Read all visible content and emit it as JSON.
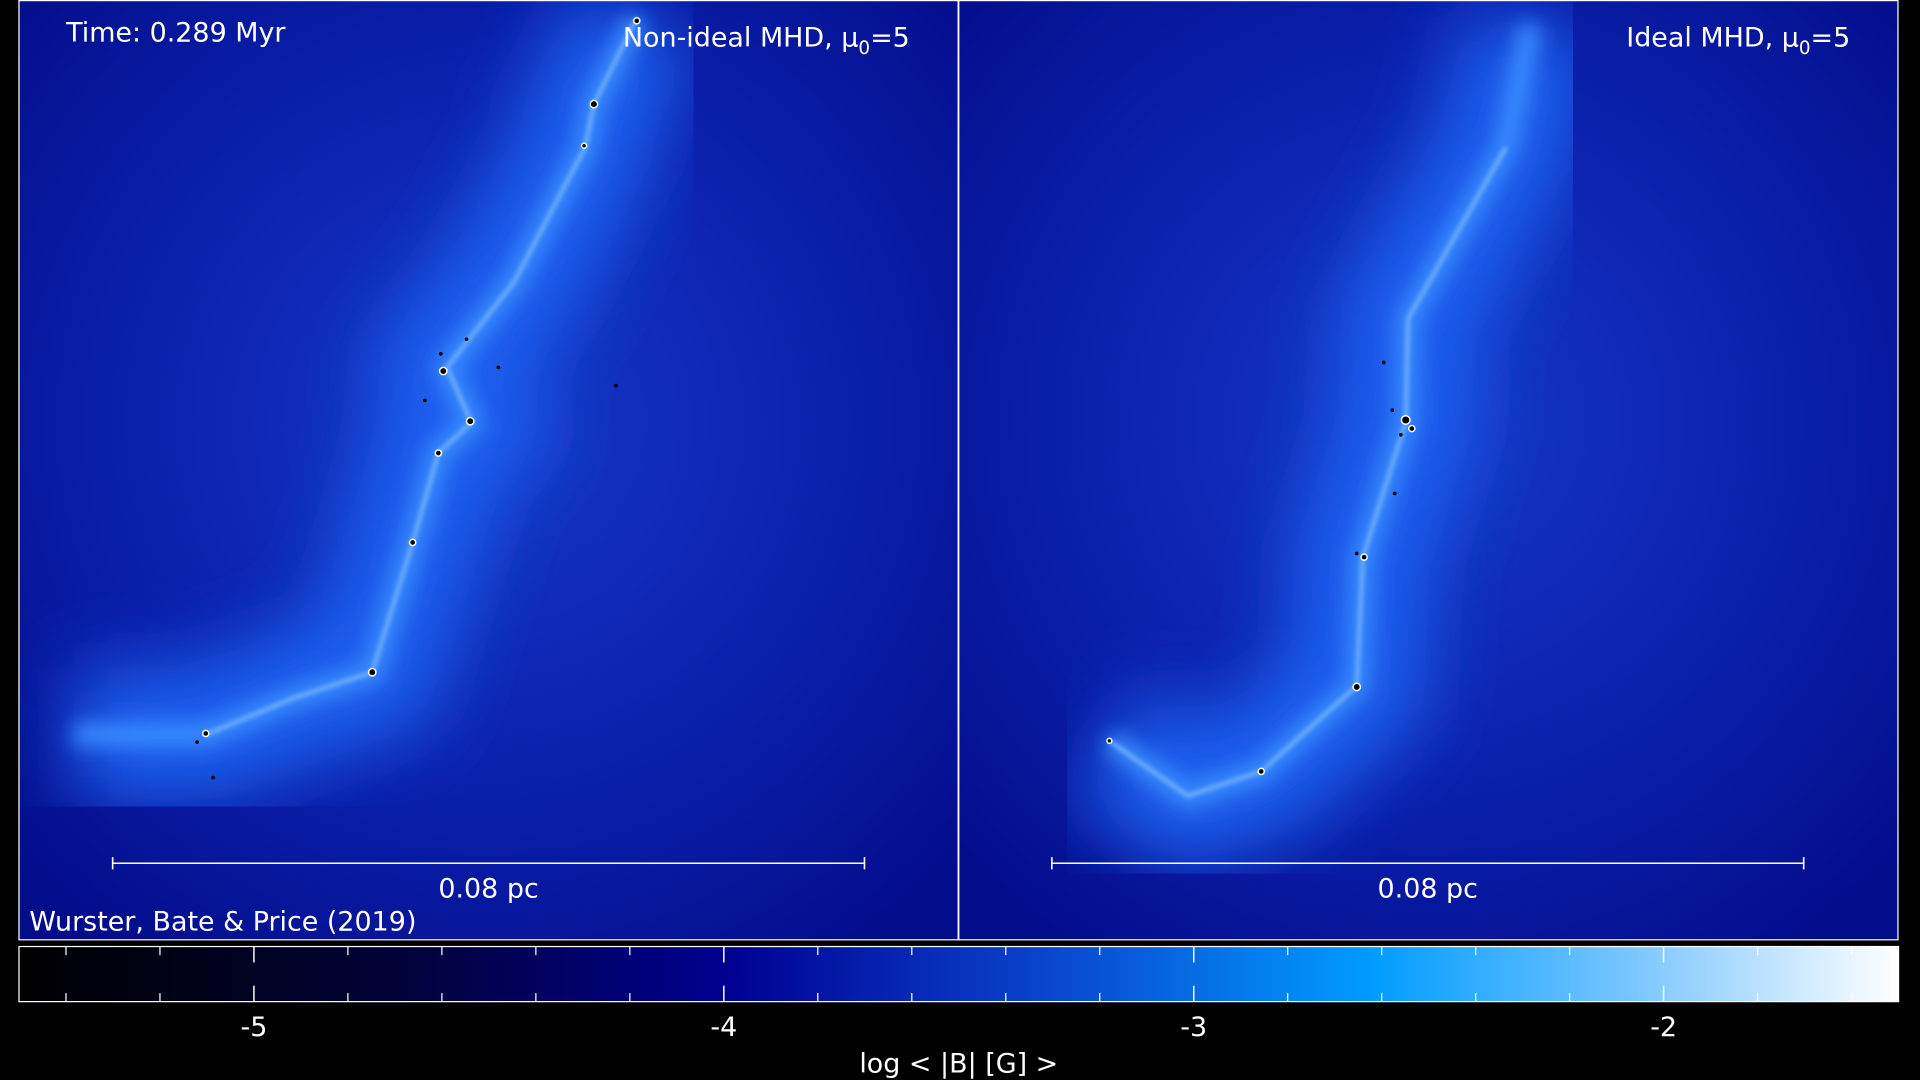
{
  "header": {
    "time": "Time: 0.289 Myr",
    "credit": "Wurster, Bate & Price (2019)"
  },
  "panels": [
    {
      "title": {
        "prefix": "Non-ideal MHD, μ",
        "subscript": "0",
        "suffix": "=5"
      },
      "scale_bar": "0.08 pc"
    },
    {
      "title": {
        "prefix": "Ideal MHD, μ",
        "subscript": "0",
        "suffix": "=5"
      },
      "scale_bar": "0.08 pc"
    }
  ],
  "colorbar": {
    "label": "log < |B| [G] >",
    "lim": [
      -5.5,
      -1.5
    ],
    "ticks": [
      -5,
      -4,
      -3,
      -2
    ],
    "minor_ticks": [
      -5.4,
      -5.2,
      -4.8,
      -4.6,
      -4.4,
      -4.2,
      -3.8,
      -3.6,
      -3.4,
      -3.2,
      -2.8,
      -2.6,
      -2.4,
      -2.2,
      -1.8,
      -1.6
    ]
  }
}
